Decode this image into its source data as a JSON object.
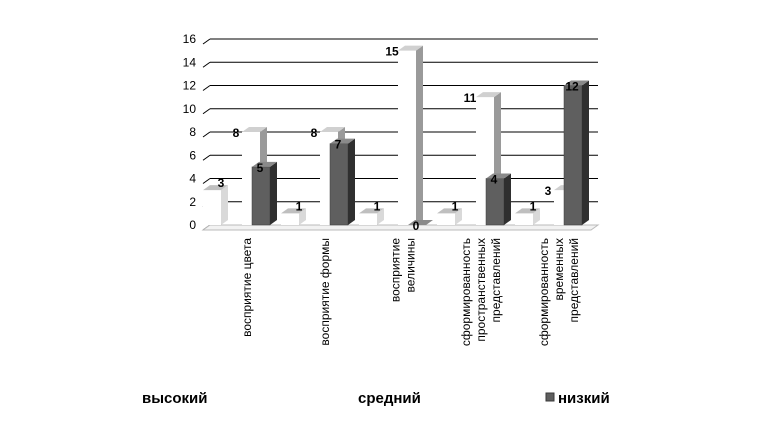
{
  "chart_data": {
    "type": "bar",
    "title": "",
    "xlabel": "",
    "ylabel": "",
    "ylim": [
      0,
      16
    ],
    "yticks": [
      0,
      2,
      4,
      6,
      8,
      10,
      12,
      14,
      16
    ],
    "grid": true,
    "legend_position": "bottom",
    "categories": [
      [
        "восприятие цвета"
      ],
      [
        "восприятие формы"
      ],
      [
        "восприятие",
        "величины"
      ],
      [
        "сформированность",
        "пространственных",
        "представлений"
      ],
      [
        "сформированность",
        "временных",
        "представлений"
      ]
    ],
    "series": [
      {
        "name": "высокий",
        "values": [
          3,
          1,
          1,
          1,
          1
        ],
        "color": "#ffffff",
        "side": "#d9d9d9",
        "top": "#bfbfbf"
      },
      {
        "name": "средний",
        "values": [
          8,
          8,
          15,
          11,
          3
        ],
        "color": "#ffffff",
        "side": "#9a9a9a",
        "top": "#d0d0d0"
      },
      {
        "name": "низкий",
        "values": [
          5,
          7,
          0,
          4,
          12
        ],
        "color": "#5f5f5f",
        "side": "#2f2f2f",
        "top": "#8a8a8a"
      }
    ]
  }
}
